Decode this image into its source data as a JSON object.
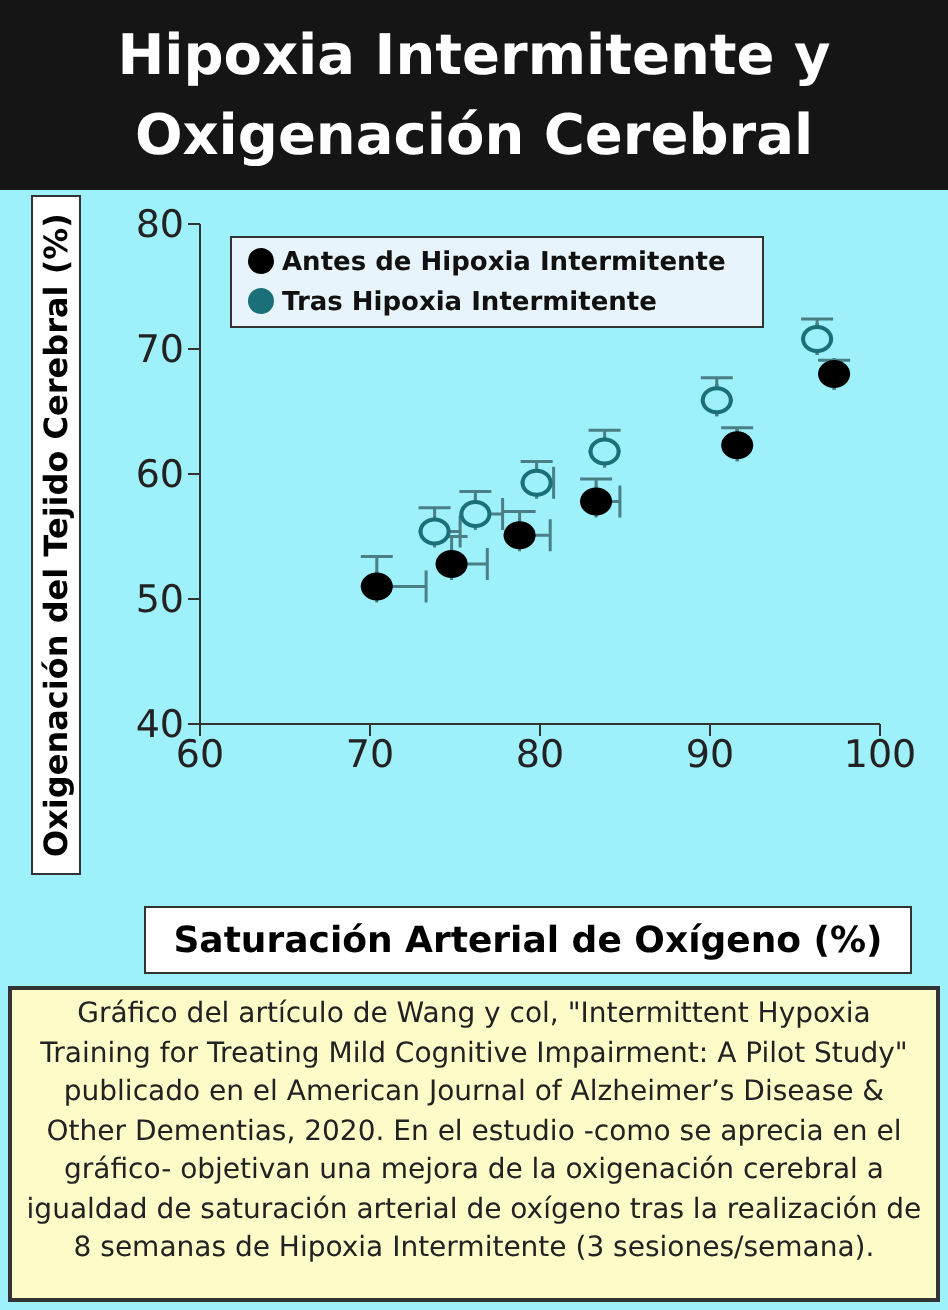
{
  "chart_data": {
    "type": "scatter",
    "title": "Hipoxia Intermitente y Oxigenación Cerebral",
    "xlabel": "Saturación Arterial de Oxígeno (%)",
    "ylabel": "Oxigenación del Tejido Cerebral (%)",
    "annotations": [
      "Gráfico del artículo de Wang y col, \"Intermittent Hypoxia Training for Treating Mild Cognitive Impairment: A Pilot Study\" publicado en el American Journal of Alzheimer’s Disease & Other Dementias, 2020. En el estudio -como se aprecia en el gráfico- objetivan una mejora de la oxigenación cerebral a igualdad de saturación arterial de oxígeno tras la realización de 8 semanas de Hipoxia Intermitente (3 sesiones/semana)."
    ],
    "xlim": [
      60,
      100
    ],
    "xticks": [
      60,
      70,
      80,
      90,
      100
    ],
    "ylim": [
      40,
      80
    ],
    "yticks": [
      40,
      50,
      60,
      70,
      80
    ],
    "grid": false,
    "legend": "top left",
    "marker": "circle",
    "series": [
      {
        "name": "Antes de Hipoxia Intermitente",
        "color": "#000000",
        "x": [
          70.4,
          74.8,
          78.8,
          83.3,
          91.6,
          97.3
        ],
        "values": [
          51.0,
          52.8,
          55.1,
          57.8,
          62.3,
          68.0
        ],
        "errors": [
          [
            51.0,
            53.4
          ],
          [
            52.8,
            55.0
          ],
          [
            55.1,
            57.0
          ],
          [
            57.8,
            59.6
          ],
          [
            62.3,
            63.7
          ],
          [
            68.0,
            69.1
          ]
        ],
        "xerrors": [
          [
            70.4,
            73.3
          ],
          [
            74.8,
            76.9
          ],
          [
            78.8,
            80.6
          ],
          [
            83.3,
            84.7
          ],
          null,
          null
        ]
      },
      {
        "name": "Tras Hipoxia Intermitente",
        "color": "#1a6f78",
        "x": [
          73.8,
          76.2,
          79.8,
          83.8,
          90.4,
          96.3
        ],
        "values": [
          55.4,
          56.8,
          59.3,
          61.8,
          65.9,
          70.8
        ],
        "errors": [
          [
            55.4,
            57.3
          ],
          [
            56.8,
            58.6
          ],
          [
            59.3,
            61.0
          ],
          [
            61.8,
            63.5
          ],
          [
            65.9,
            67.7
          ],
          [
            70.8,
            72.4
          ]
        ],
        "xerrors": [
          [
            73.8,
            75.3
          ],
          [
            76.2,
            77.8
          ],
          [
            79.8,
            80.8
          ],
          null,
          null,
          null
        ]
      }
    ]
  }
}
